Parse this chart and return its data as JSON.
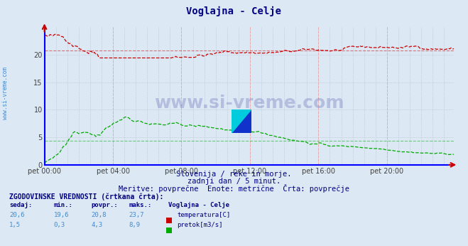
{
  "title": "Voglajna - Celje",
  "bg_color": "#dce9f5",
  "plot_bg_color": "#dce9f5",
  "grid_color_dot": "#b0b8c8",
  "grid_color_vert": "#e8aaaa",
  "subtitle_lines": [
    "Slovenija / reke in morje.",
    "zadnji dan / 5 minut.",
    "Meritve: povprečne  Enote: metrične  Črta: povprečje"
  ],
  "xlabel_ticks": [
    "pet 00:00",
    "pet 04:00",
    "pet 08:00",
    "pet 12:00",
    "pet 16:00",
    "pet 20:00"
  ],
  "ylabel_ticks": [
    0,
    5,
    10,
    15,
    20
  ],
  "ylim": [
    0,
    25
  ],
  "xlim": [
    0,
    287
  ],
  "watermark": "www.si-vreme.com",
  "left_label": "www.si-vreme.com",
  "temp_color": "#cc0000",
  "flow_color": "#00aa00",
  "legend_title": "ZGODOVINSKE VREDNOSTI (črtkana črta):",
  "legend_headers": [
    "sedaj:",
    "min.:",
    "povpr.:",
    "maks.:",
    "Voglajna - Celje"
  ],
  "temp_stats": [
    "20,6",
    "19,6",
    "20,8",
    "23,7"
  ],
  "flow_stats": [
    "1,5",
    "0,3",
    "4,3",
    "8,9"
  ],
  "temp_label": "temperatura[C]",
  "flow_label": "pretok[m3/s]",
  "temp_avg_value": 20.8,
  "flow_avg_value": 4.3
}
